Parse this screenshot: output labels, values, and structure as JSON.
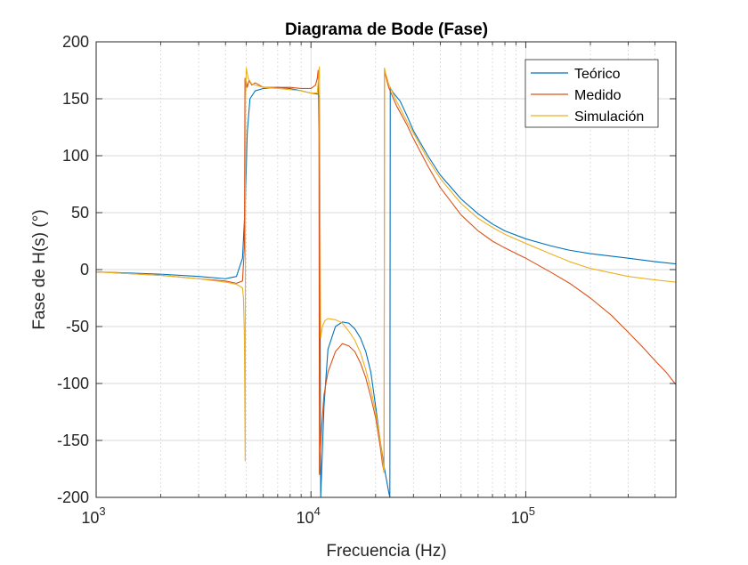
{
  "chart_data": {
    "type": "line",
    "title": "Diagrama de Bode (Fase)",
    "xlabel": "Frecuencia (Hz)",
    "ylabel": "Fase de H(s) (°)",
    "x_scale": "log",
    "xlim": [
      1000,
      500000
    ],
    "ylim": [
      -200,
      200
    ],
    "grid": true,
    "minor_grid_x": true,
    "legend_position": "top-right",
    "x_ticks": [
      {
        "value": 1000,
        "base": "10",
        "exp": "3"
      },
      {
        "value": 10000,
        "base": "10",
        "exp": "4"
      },
      {
        "value": 100000,
        "base": "10",
        "exp": "5"
      }
    ],
    "y_ticks": [
      {
        "value": -200,
        "label": "-200"
      },
      {
        "value": -150,
        "label": "-150"
      },
      {
        "value": -100,
        "label": "-100"
      },
      {
        "value": -50,
        "label": "-50"
      },
      {
        "value": 0,
        "label": "0"
      },
      {
        "value": 50,
        "label": "50"
      },
      {
        "value": 100,
        "label": "100"
      },
      {
        "value": 150,
        "label": "150"
      },
      {
        "value": 200,
        "label": "200"
      }
    ],
    "series": [
      {
        "name": "Teórico",
        "color": "#0072BD",
        "x": [
          1000,
          2000,
          3000,
          4000,
          4500,
          4800,
          4950,
          5050,
          5200,
          5500,
          6000,
          7000,
          8000,
          9000,
          10000,
          10800,
          10950,
          11100,
          11500,
          12000,
          13000,
          14000,
          15000,
          16000,
          17000,
          18000,
          19000,
          20000,
          21000,
          22000,
          23000,
          23300,
          23400,
          23500,
          24000,
          26000,
          28000,
          30000,
          35000,
          40000,
          50000,
          60000,
          70000,
          80000,
          100000,
          130000,
          160000,
          200000,
          300000,
          400000,
          500000
        ],
        "y": [
          -2,
          -4,
          -6,
          -8,
          -6,
          10,
          60,
          120,
          150,
          157,
          159,
          160,
          159,
          157,
          155,
          154,
          150,
          -200,
          -120,
          -70,
          -50,
          -46,
          -47,
          -52,
          -60,
          -72,
          -90,
          -120,
          -150,
          -175,
          -195,
          -200,
          160,
          159,
          156,
          148,
          135,
          122,
          100,
          83,
          62,
          49,
          40,
          34,
          27,
          21,
          17,
          14,
          10,
          7,
          5
        ]
      },
      {
        "name": "Medido",
        "color": "#D95319",
        "x": [
          1000,
          2000,
          3000,
          4000,
          4500,
          4800,
          4900,
          4930,
          4960,
          5000,
          5050,
          5150,
          5300,
          5500,
          6000,
          7000,
          8000,
          9000,
          10000,
          10500,
          10700,
          10800,
          10900,
          10950,
          11050,
          11200,
          11500,
          12000,
          13000,
          14000,
          15000,
          16000,
          17000,
          18000,
          19000,
          20000,
          21000,
          21500,
          21900,
          22000,
          22100,
          22300,
          23000,
          25000,
          28000,
          30000,
          35000,
          40000,
          50000,
          60000,
          70000,
          80000,
          100000,
          130000,
          160000,
          200000,
          250000,
          300000,
          350000,
          400000,
          450000,
          500000
        ],
        "y": [
          -2,
          -5,
          -8,
          -10,
          -12,
          -10,
          20,
          168,
          155,
          165,
          160,
          166,
          162,
          164,
          160,
          160,
          160,
          159,
          159,
          162,
          168,
          175,
          120,
          -180,
          -165,
          -140,
          -110,
          -90,
          -72,
          -65,
          -67,
          -72,
          -82,
          -95,
          -112,
          -130,
          -155,
          -170,
          -178,
          176,
          174,
          170,
          160,
          144,
          127,
          115,
          91,
          72,
          48,
          34,
          25,
          19,
          10,
          -2,
          -12,
          -25,
          -40,
          -55,
          -68,
          -80,
          -90,
          -101
        ]
      },
      {
        "name": "Simulación",
        "color": "#EDB120",
        "x": [
          1000,
          2000,
          3000,
          4000,
          4500,
          4800,
          4850,
          4900,
          4940,
          4960,
          5000,
          5100,
          5300,
          6000,
          7000,
          8000,
          9000,
          10000,
          10700,
          10950,
          11000,
          11100,
          11300,
          11600,
          12000,
          13000,
          14000,
          15000,
          16000,
          17000,
          18000,
          19000,
          20000,
          21000,
          21500,
          21800,
          21900,
          22000,
          22300,
          23000,
          25000,
          28000,
          30000,
          35000,
          40000,
          50000,
          60000,
          70000,
          80000,
          100000,
          130000,
          160000,
          200000,
          300000,
          400000,
          500000
        ],
        "y": [
          -2,
          -5,
          -8,
          -11,
          -13,
          -16,
          -25,
          -60,
          -168,
          150,
          177,
          168,
          163,
          160,
          159,
          158,
          157,
          155,
          155,
          178,
          100,
          -60,
          -50,
          -45,
          -43,
          -44,
          -47,
          -54,
          -62,
          -73,
          -88,
          -105,
          -125,
          -150,
          -165,
          -175,
          -178,
          177,
          172,
          163,
          148,
          130,
          120,
          97,
          80,
          58,
          45,
          37,
          31,
          23,
          14,
          7,
          1,
          -6,
          -9,
          -11
        ]
      }
    ]
  }
}
